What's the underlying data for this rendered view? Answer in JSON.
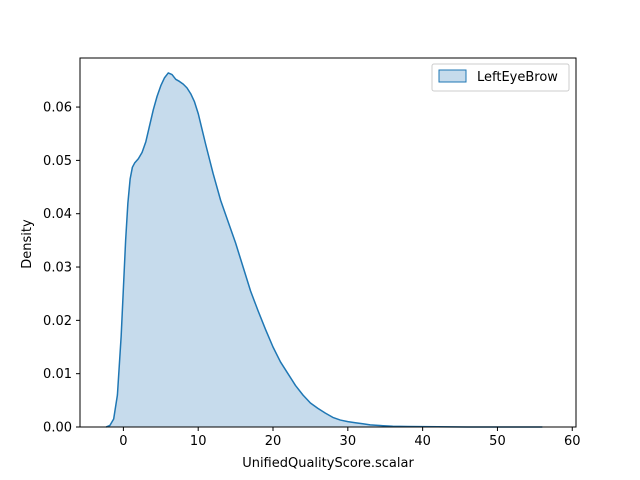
{
  "chart_data": {
    "type": "area",
    "xlabel": "UnifiedQualityScore.scalar",
    "ylabel": "Density",
    "xlim": [
      -5.8,
      60.5
    ],
    "ylim": [
      0,
      0.0692
    ],
    "xticks": [
      0,
      10,
      20,
      30,
      40,
      50,
      60
    ],
    "yticks": [
      0.0,
      0.01,
      0.02,
      0.03,
      0.04,
      0.05,
      0.06
    ],
    "ytick_labels": [
      "0.00",
      "0.01",
      "0.02",
      "0.03",
      "0.04",
      "0.05",
      "0.06"
    ],
    "grid": false,
    "legend_position": "top-right",
    "series": [
      {
        "name": "LeftEyeBrow",
        "color": "#1f77b4",
        "fill_color": "#c6dbec",
        "x": [
          -2.3,
          -1.8,
          -1.3,
          -0.8,
          -0.3,
          0.0,
          0.3,
          0.6,
          0.9,
          1.2,
          1.5,
          2.0,
          2.5,
          3.0,
          3.5,
          4.0,
          4.5,
          5.0,
          5.5,
          6.0,
          6.5,
          7.0,
          7.5,
          8.0,
          8.5,
          9.0,
          9.5,
          10.0,
          11.0,
          12.0,
          13.0,
          14.0,
          15.0,
          16.0,
          17.0,
          18.0,
          19.0,
          20.0,
          21.0,
          22.0,
          23.0,
          24.0,
          25.0,
          26.0,
          27.0,
          28.0,
          29.0,
          30.0,
          31.0,
          32.0,
          33.0,
          34.0,
          36.0,
          38.0,
          40.0,
          42.0,
          44.0,
          46.0,
          48.0,
          50.0,
          52.0,
          54.0,
          56.0
        ],
        "y": [
          0.0,
          0.0003,
          0.0015,
          0.006,
          0.017,
          0.026,
          0.035,
          0.042,
          0.0465,
          0.0487,
          0.0495,
          0.0503,
          0.0515,
          0.0535,
          0.0565,
          0.0595,
          0.062,
          0.064,
          0.0655,
          0.0664,
          0.0661,
          0.0652,
          0.0648,
          0.0643,
          0.0636,
          0.0625,
          0.061,
          0.0588,
          0.053,
          0.0475,
          0.0425,
          0.0385,
          0.0345,
          0.03,
          0.0255,
          0.0218,
          0.0183,
          0.015,
          0.0122,
          0.01,
          0.0078,
          0.006,
          0.0045,
          0.0035,
          0.0026,
          0.0018,
          0.0013,
          0.001,
          0.0008,
          0.0006,
          0.0004,
          0.0003,
          0.00015,
          0.0001,
          7e-05,
          4e-05,
          2e-05,
          1e-05,
          0.0,
          0.0,
          0.0,
          0.0,
          0.0
        ]
      }
    ]
  }
}
